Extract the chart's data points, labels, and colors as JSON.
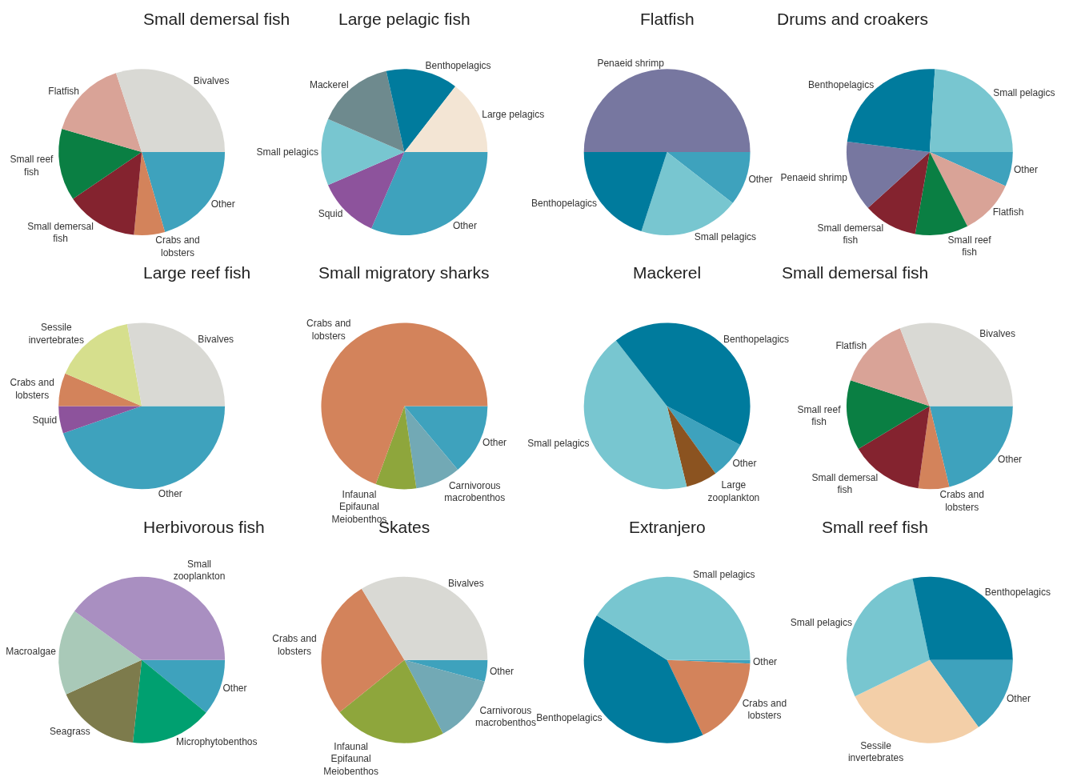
{
  "chart_data": [
    {
      "type": "pie",
      "title": "Small demersal fish",
      "categories": [
        "Bivalves",
        "Flatfish",
        "Small reef fish",
        "Small demersal fish",
        "Crabs and lobsters",
        "Other"
      ],
      "values": [
        30,
        15.5,
        14,
        14,
        6,
        20.5
      ],
      "colors": [
        "#d9d9d4",
        "#d9a397",
        "#0a7f43",
        "#84232f",
        "#d3835b",
        "#3ea2bd"
      ]
    },
    {
      "type": "pie",
      "title": "Large pelagic fish",
      "categories": [
        "Large pelagics",
        "Benthopelagics",
        "Mackerel",
        "Small pelagics",
        "Squid",
        "Other"
      ],
      "values": [
        14.5,
        14,
        15,
        13,
        12,
        31.5
      ],
      "colors": [
        "#f3e5d4",
        "#007b9d",
        "#6e8a8e",
        "#78c6d0",
        "#8d539c",
        "#3ea2bd"
      ]
    },
    {
      "type": "pie",
      "title": "Flatfish",
      "categories": [
        "Penaeid shrimp",
        "Benthopelagics",
        "Small pelagics",
        "Other"
      ],
      "values": [
        50,
        20,
        19.5,
        10.5
      ],
      "colors": [
        "#7777a0",
        "#007b9d",
        "#78c6d0",
        "#3ea2bd"
      ]
    },
    {
      "type": "pie",
      "title": "Drums and croakers",
      "categories": [
        "Small pelagics",
        "Benthopelagics",
        "Penaeid shrimp",
        "Small demersal fish",
        "Small reef fish",
        "Flatfish",
        "Other"
      ],
      "values": [
        24,
        24,
        13.7,
        10.5,
        10.3,
        10.8,
        6.7
      ],
      "colors": [
        "#78c6d0",
        "#007b9d",
        "#7777a0",
        "#84232f",
        "#0a7f43",
        "#d9a397",
        "#3ea2bd"
      ]
    },
    {
      "type": "pie",
      "title": "Large reef fish",
      "categories": [
        "Bivalves",
        "Sessile invertebrates",
        "Crabs and lobsters",
        "Squid",
        "Other"
      ],
      "values": [
        27.8,
        15.8,
        6.4,
        5.3,
        44.7
      ],
      "colors": [
        "#d9d9d4",
        "#d6df8d",
        "#d3835b",
        "#8d539c",
        "#3ea2bd"
      ]
    },
    {
      "type": "pie",
      "title": "Small migratory sharks",
      "categories": [
        "Crabs and lobsters",
        "Infaunal Epifaunal Meiobenthos",
        "Carnivorous macrobenthos",
        "Other"
      ],
      "values": [
        69.4,
        7.9,
        8.8,
        13.9
      ],
      "colors": [
        "#d3835b",
        "#8ea63c",
        "#72a9b5",
        "#3ea2bd"
      ]
    },
    {
      "type": "pie",
      "title": "Mackerel",
      "categories": [
        "Benthopelagics",
        "Small pelagics",
        "Large zooplankton",
        "Other"
      ],
      "values": [
        43.3,
        43.3,
        6.1,
        7.3
      ],
      "colors": [
        "#007b9d",
        "#78c6d0",
        "#8b5320",
        "#3ea2bd"
      ]
    },
    {
      "type": "pie",
      "title": "Small demersal fish",
      "categories": [
        "Bivalves",
        "Flatfish",
        "Small reef fish",
        "Small demersal fish",
        "Crabs and lobsters",
        "Other"
      ],
      "values": [
        30.8,
        14.2,
        13.6,
        14.2,
        6,
        21.2
      ],
      "colors": [
        "#d9d9d4",
        "#d9a397",
        "#0a7f43",
        "#84232f",
        "#d3835b",
        "#3ea2bd"
      ]
    },
    {
      "type": "pie",
      "title": "Herbivorous fish",
      "categories": [
        "Small zooplankton",
        "Macroalgae",
        "Seagrass",
        "Microphytobenthos",
        "Other"
      ],
      "values": [
        40,
        16.8,
        16.5,
        15.8,
        10.9
      ],
      "colors": [
        "#a98fc1",
        "#a9c9b8",
        "#7d7b4c",
        "#00a070",
        "#3ea2bd"
      ]
    },
    {
      "type": "pie",
      "title": "Skates",
      "categories": [
        "Bivalves",
        "Crabs and lobsters",
        "Infaunal Epifaunal Meiobenthos",
        "Carnivorous macrobenthos",
        "Other"
      ],
      "values": [
        33.6,
        27.2,
        21.9,
        13.1,
        4.2
      ],
      "colors": [
        "#d9d9d4",
        "#d3835b",
        "#8ea63c",
        "#72a9b5",
        "#3ea2bd"
      ]
    },
    {
      "type": "pie",
      "title": "Extranjero",
      "categories": [
        "Small pelagics",
        "Benthopelagics",
        "Crabs and lobsters",
        "Other"
      ],
      "values": [
        41,
        41.1,
        17.2,
        0.7
      ],
      "colors": [
        "#78c6d0",
        "#007b9d",
        "#d3835b",
        "#3ea2bd"
      ]
    },
    {
      "type": "pie",
      "title": "Small reef fish",
      "categories": [
        "Benthopelagics",
        "Small pelagics",
        "Sessile invertebrates",
        "Other"
      ],
      "values": [
        28.3,
        28.9,
        27.8,
        15
      ],
      "colors": [
        "#007b9d",
        "#78c6d0",
        "#f3cfa8",
        "#3ea2bd"
      ]
    }
  ]
}
